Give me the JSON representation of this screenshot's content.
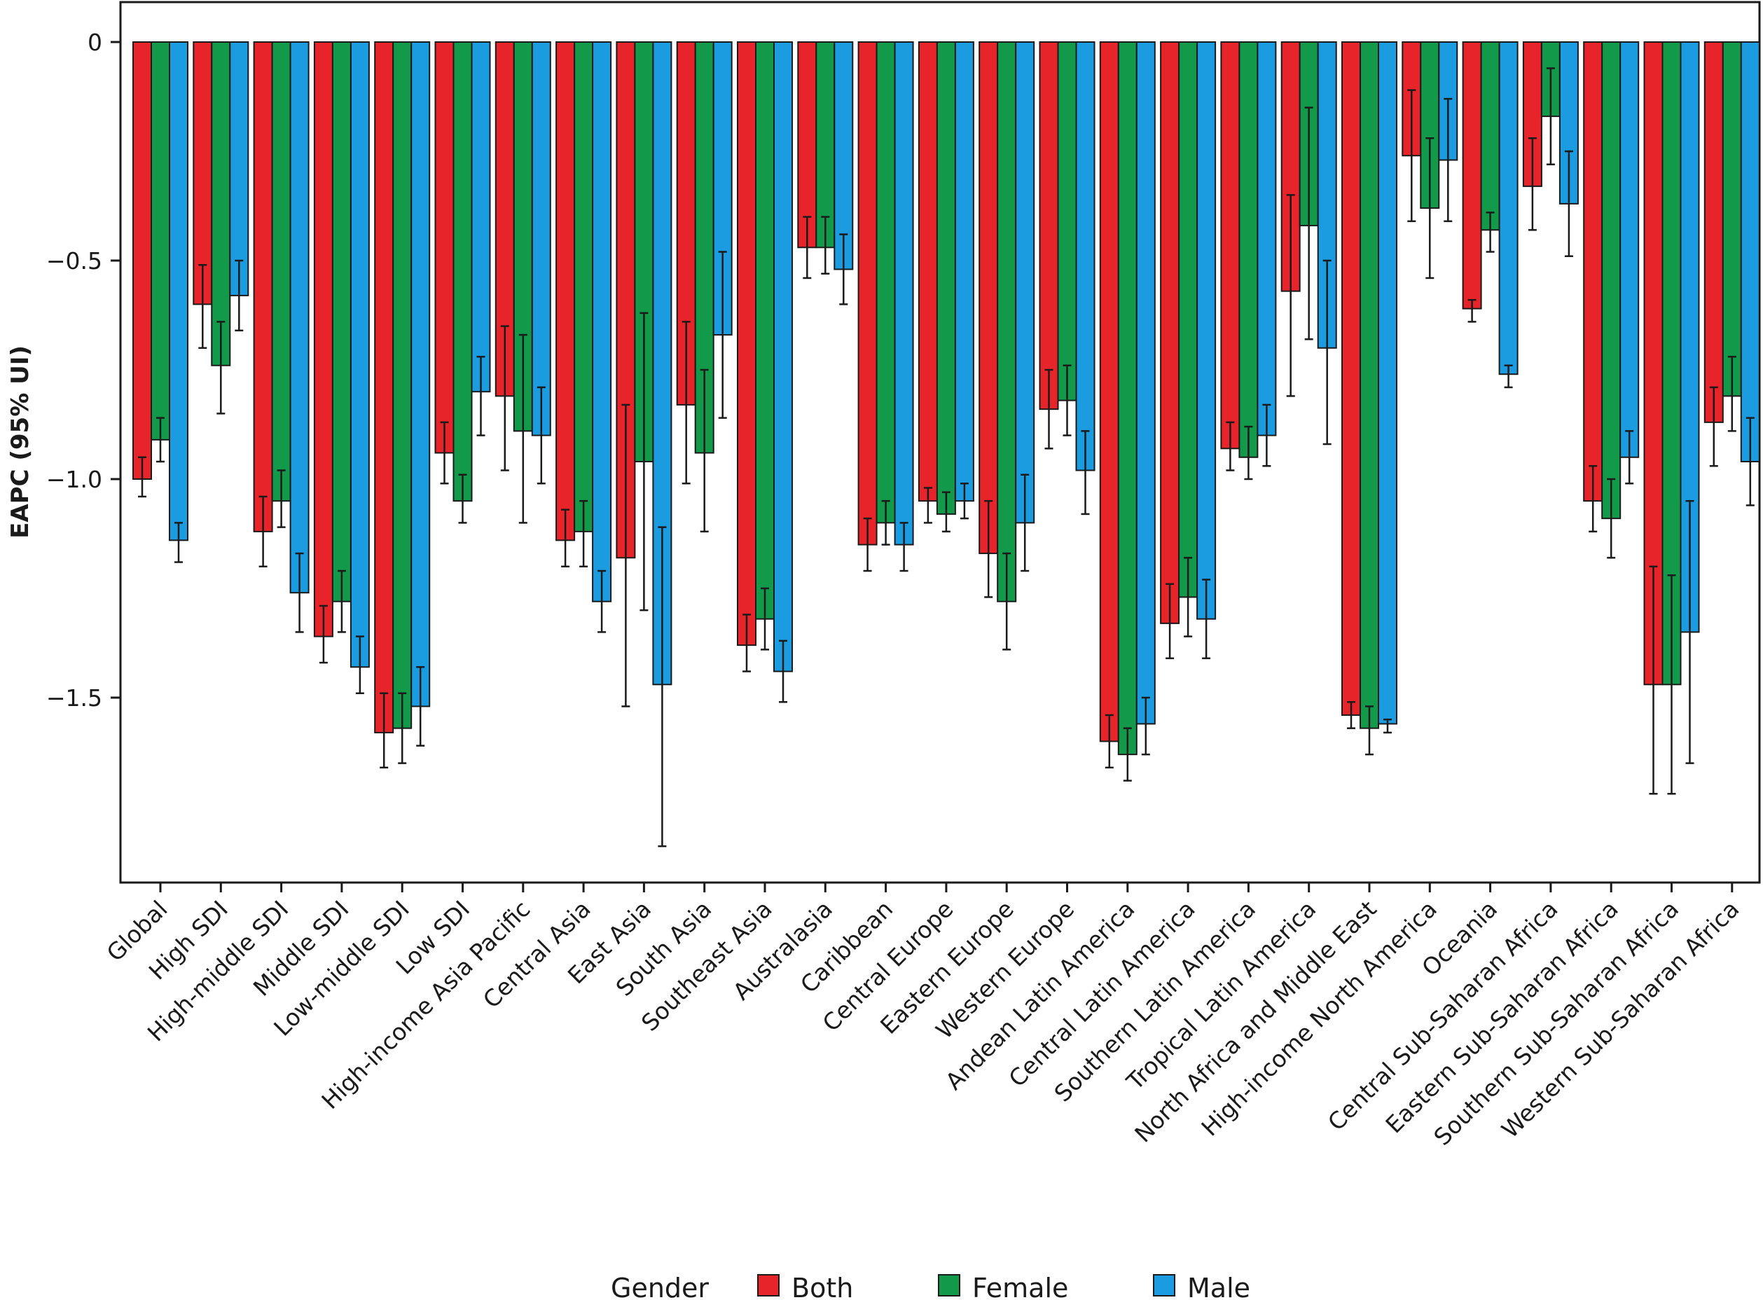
{
  "chart_data": {
    "type": "bar",
    "ylabel": "EAPC (95% UI)",
    "xlabel": "",
    "ylim": [
      -1.92,
      0.08
    ],
    "yticks": [
      0,
      -0.5,
      -1.0,
      -1.5
    ],
    "ytick_labels": [
      "0",
      "−0.5",
      "−1.0",
      "−1.5"
    ],
    "grid": false,
    "error_bars": true,
    "legend": {
      "title": "Gender",
      "position": "bottom",
      "entries": [
        "Both",
        "Female",
        "Male"
      ]
    },
    "colors": {
      "Both": "#e8242b",
      "Female": "#12994a",
      "Male": "#1c9ce0"
    },
    "categories": [
      "Global",
      "High SDI",
      "High-middle SDI",
      "Middle SDI",
      "Low-middle SDI",
      "Low SDI",
      "High-income Asia Pacific",
      "Central Asia",
      "East Asia",
      "South Asia",
      "Southeast Asia",
      "Australasia",
      "Caribbean",
      "Central Europe",
      "Eastern Europe",
      "Western Europe",
      "Andean Latin America",
      "Central Latin America",
      "Southern Latin America",
      "Tropical Latin America",
      "North Africa and Middle East",
      "High-income North America",
      "Oceania",
      "Central Sub-Saharan Africa",
      "Eastern Sub-Saharan Africa",
      "Southern Sub-Saharan Africa",
      "Western Sub-Saharan Africa"
    ],
    "series": [
      {
        "name": "Both",
        "values": [
          -1.0,
          -0.6,
          -1.12,
          -1.36,
          -1.58,
          -0.94,
          -0.81,
          -1.14,
          -1.18,
          -0.83,
          -1.38,
          -0.47,
          -1.15,
          -1.05,
          -1.17,
          -0.84,
          -1.6,
          -1.33,
          -0.93,
          -0.57,
          -1.54,
          -0.26,
          -0.61,
          -0.33,
          -1.05,
          -1.47,
          -0.87
        ],
        "lower": [
          -1.04,
          -0.7,
          -1.2,
          -1.42,
          -1.66,
          -1.01,
          -0.98,
          -1.2,
          -1.52,
          -1.01,
          -1.44,
          -0.54,
          -1.21,
          -1.1,
          -1.27,
          -0.93,
          -1.66,
          -1.41,
          -0.98,
          -0.81,
          -1.57,
          -0.41,
          -0.64,
          -0.43,
          -1.12,
          -1.72,
          -0.97
        ],
        "upper": [
          -0.95,
          -0.51,
          -1.04,
          -1.29,
          -1.49,
          -0.87,
          -0.65,
          -1.07,
          -0.83,
          -0.64,
          -1.31,
          -0.4,
          -1.09,
          -1.02,
          -1.05,
          -0.75,
          -1.54,
          -1.24,
          -0.87,
          -0.35,
          -1.51,
          -0.11,
          -0.59,
          -0.22,
          -0.97,
          -1.2,
          -0.79
        ]
      },
      {
        "name": "Female",
        "values": [
          -0.91,
          -0.74,
          -1.05,
          -1.28,
          -1.57,
          -1.05,
          -0.89,
          -1.12,
          -0.96,
          -0.94,
          -1.32,
          -0.47,
          -1.1,
          -1.08,
          -1.28,
          -0.82,
          -1.63,
          -1.27,
          -0.95,
          -0.42,
          -1.57,
          -0.38,
          -0.43,
          -0.17,
          -1.09,
          -1.47,
          -0.81
        ],
        "lower": [
          -0.96,
          -0.85,
          -1.11,
          -1.35,
          -1.65,
          -1.1,
          -1.1,
          -1.2,
          -1.3,
          -1.12,
          -1.39,
          -0.53,
          -1.15,
          -1.12,
          -1.39,
          -0.9,
          -1.69,
          -1.36,
          -1.0,
          -0.68,
          -1.63,
          -0.54,
          -0.48,
          -0.28,
          -1.18,
          -1.72,
          -0.89
        ],
        "upper": [
          -0.86,
          -0.64,
          -0.98,
          -1.21,
          -1.49,
          -0.99,
          -0.67,
          -1.05,
          -0.62,
          -0.75,
          -1.25,
          -0.4,
          -1.05,
          -1.03,
          -1.17,
          -0.74,
          -1.57,
          -1.18,
          -0.88,
          -0.15,
          -1.52,
          -0.22,
          -0.39,
          -0.06,
          -1.0,
          -1.22,
          -0.72
        ]
      },
      {
        "name": "Male",
        "values": [
          -1.14,
          -0.58,
          -1.26,
          -1.43,
          -1.52,
          -0.8,
          -0.9,
          -1.28,
          -1.47,
          -0.67,
          -1.44,
          -0.52,
          -1.15,
          -1.05,
          -1.1,
          -0.98,
          -1.56,
          -1.32,
          -0.9,
          -0.7,
          -1.56,
          -0.27,
          -0.76,
          -0.37,
          -0.95,
          -1.35,
          -0.96
        ],
        "lower": [
          -1.19,
          -0.66,
          -1.35,
          -1.49,
          -1.61,
          -0.9,
          -1.01,
          -1.35,
          -1.84,
          -0.86,
          -1.51,
          -0.6,
          -1.21,
          -1.09,
          -1.21,
          -1.08,
          -1.63,
          -1.41,
          -0.97,
          -0.92,
          -1.58,
          -0.41,
          -0.79,
          -0.49,
          -1.01,
          -1.65,
          -1.06
        ],
        "upper": [
          -1.1,
          -0.5,
          -1.17,
          -1.36,
          -1.43,
          -0.72,
          -0.79,
          -1.21,
          -1.11,
          -0.48,
          -1.37,
          -0.44,
          -1.1,
          -1.01,
          -0.99,
          -0.89,
          -1.5,
          -1.23,
          -0.83,
          -0.5,
          -1.55,
          -0.13,
          -0.74,
          -0.25,
          -0.89,
          -1.05,
          -0.86
        ]
      }
    ]
  }
}
